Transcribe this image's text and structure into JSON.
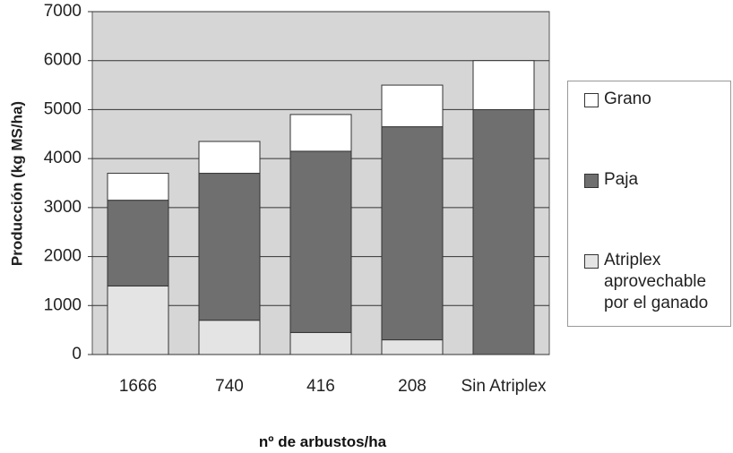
{
  "chart_data": {
    "type": "stacked_bar",
    "x_label": "nº de arbustos/ha",
    "y_label": "Producción (kg MS/ha)",
    "categories": [
      "1666",
      "740",
      "416",
      "208",
      "Sin Atriplex"
    ],
    "series": [
      {
        "name": "Atriplex aprovechable por el ganado",
        "color": "#e4e4e4",
        "values": [
          1400,
          700,
          450,
          300,
          0
        ]
      },
      {
        "name": "Paja",
        "color": "#6f6f6f",
        "values": [
          1750,
          3000,
          3700,
          4350,
          5000
        ]
      },
      {
        "name": "Grano",
        "color": "#ffffff",
        "values": [
          550,
          650,
          750,
          850,
          1000
        ]
      }
    ],
    "ylim": [
      0,
      7000
    ],
    "yticks": [
      0,
      1000,
      2000,
      3000,
      4000,
      5000,
      6000,
      7000
    ],
    "grid": true,
    "legend": "right"
  }
}
